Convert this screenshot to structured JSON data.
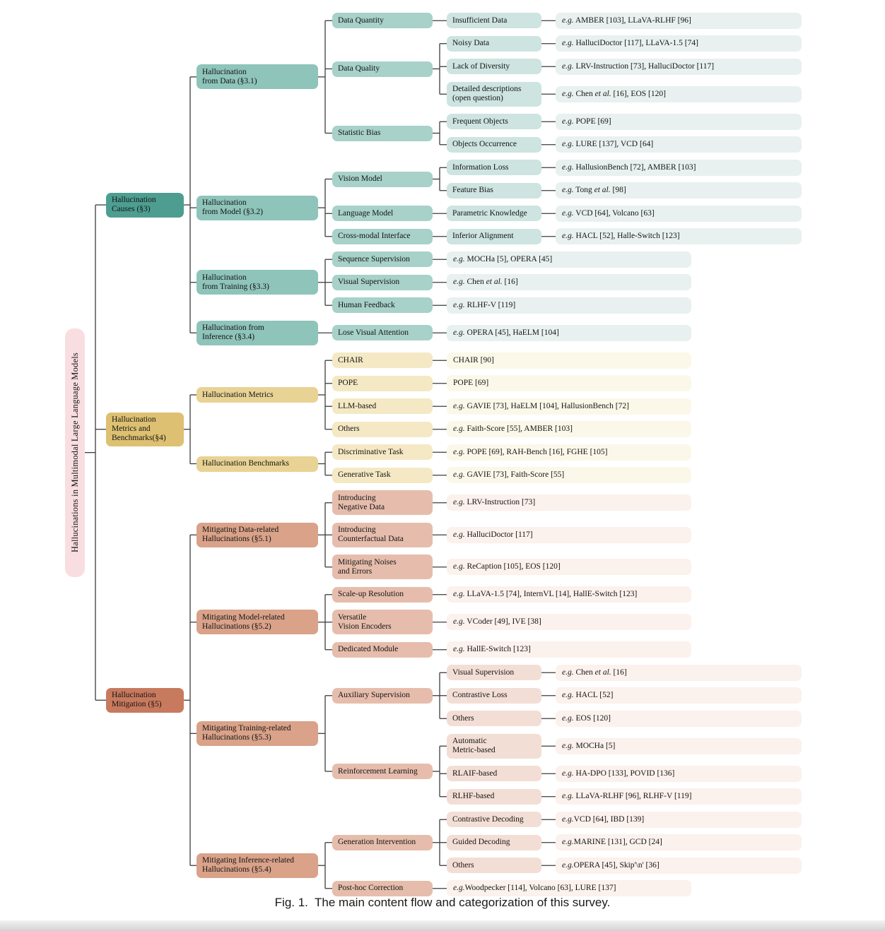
{
  "caption": "Fig. 1.  The main content flow and categorization of this survey.",
  "palette": {
    "root": "#f9dee1",
    "line": "#3d3d3d",
    "teal": {
      "l1": "#4d9e90",
      "l2": "#8ec4ba",
      "l3": "#a7d1c9",
      "l4": "#cde4e0",
      "leaf": "#e8f1ef"
    },
    "gold": {
      "l1": "#ddc071",
      "l2": "#e8d294",
      "l3": "#f4e9c4",
      "leaf": "#fbf8e9"
    },
    "red": {
      "l1": "#c87a5e",
      "l2": "#d9a289",
      "l3": "#e6bdac",
      "l4": "#f3ded5",
      "leaf": "#fbf1ed"
    }
  },
  "root": {
    "label": "Hallucinations in Multimodal Large Language Models",
    "style": "root",
    "children": [
      {
        "label": "Hallucination\nCauses (§3)",
        "style": "teal.l1",
        "children": [
          {
            "label": "Hallucination\nfrom Data (§3.1)",
            "style": "teal.l2",
            "children": [
              {
                "label": "Data Quantity",
                "style": "teal.l3",
                "children": [
                  {
                    "label": "Insufficient Data",
                    "style": "teal.l4",
                    "children": [
                      {
                        "label": "*e.g.* AMBER [103], LLaVA-RLHF [96]",
                        "style": "teal.leaf"
                      }
                    ]
                  }
                ]
              },
              {
                "label": "Data Quality",
                "style": "teal.l3",
                "children": [
                  {
                    "label": "Noisy Data",
                    "style": "teal.l4",
                    "children": [
                      {
                        "label": "*e.g.* HalluciDoctor [117], LLaVA-1.5 [74]",
                        "style": "teal.leaf"
                      }
                    ]
                  },
                  {
                    "label": "Lack of Diversity",
                    "style": "teal.l4",
                    "children": [
                      {
                        "label": "*e.g.* LRV-Instruction [73], HalluciDoctor [117]",
                        "style": "teal.leaf"
                      }
                    ]
                  },
                  {
                    "label": "Detailed descriptions\n(open question)",
                    "style": "teal.l4",
                    "children": [
                      {
                        "label": "*e.g.* Chen *et al.* [16], EOS [120]",
                        "style": "teal.leaf"
                      }
                    ]
                  }
                ]
              },
              {
                "label": "Statistic Bias",
                "style": "teal.l3",
                "children": [
                  {
                    "label": "Frequent Objects",
                    "style": "teal.l4",
                    "children": [
                      {
                        "label": "*e.g.* POPE [69]",
                        "style": "teal.leaf"
                      }
                    ]
                  },
                  {
                    "label": "Objects Occurrence",
                    "style": "teal.l4",
                    "children": [
                      {
                        "label": "*e.g.* LURE [137], VCD [64]",
                        "style": "teal.leaf"
                      }
                    ]
                  }
                ]
              }
            ]
          },
          {
            "label": "Hallucination\nfrom Model (§3.2)",
            "style": "teal.l2",
            "children": [
              {
                "label": "Vision Model",
                "style": "teal.l3",
                "children": [
                  {
                    "label": "Information Loss",
                    "style": "teal.l4",
                    "children": [
                      {
                        "label": "*e.g.* HallusionBench [72], AMBER [103]",
                        "style": "teal.leaf"
                      }
                    ]
                  },
                  {
                    "label": "Feature Bias",
                    "style": "teal.l4",
                    "children": [
                      {
                        "label": "*e.g.* Tong *et al.* [98]",
                        "style": "teal.leaf"
                      }
                    ]
                  }
                ]
              },
              {
                "label": "Language Model",
                "style": "teal.l3",
                "children": [
                  {
                    "label": "Parametric Knowledge",
                    "style": "teal.l4",
                    "children": [
                      {
                        "label": "*e.g.* VCD [64], Volcano [63]",
                        "style": "teal.leaf"
                      }
                    ]
                  }
                ]
              },
              {
                "label": "Cross-modal Interface",
                "style": "teal.l3",
                "children": [
                  {
                    "label": "Inferior Alignment",
                    "style": "teal.l4",
                    "children": [
                      {
                        "label": "*e.g.* HACL [52], Halle-Switch [123]",
                        "style": "teal.leaf"
                      }
                    ]
                  }
                ]
              }
            ]
          },
          {
            "label": "Hallucination\nfrom Training (§3.3)",
            "style": "teal.l2",
            "children": [
              {
                "label": "Sequence Supervision",
                "style": "teal.l3",
                "children": [
                  {
                    "label": "*e.g.* MOCHa [5], OPERA [45]",
                    "style": "teal.leaf"
                  }
                ]
              },
              {
                "label": "Visual Supervision",
                "style": "teal.l3",
                "children": [
                  {
                    "label": "*e.g.* Chen *et al.* [16]",
                    "style": "teal.leaf"
                  }
                ]
              },
              {
                "label": "Human Feedback",
                "style": "teal.l3",
                "children": [
                  {
                    "label": "*e.g.* RLHF-V [119]",
                    "style": "teal.leaf"
                  }
                ]
              }
            ]
          },
          {
            "label": "Hallucination from\nInference (§3.4)",
            "style": "teal.l2",
            "children": [
              {
                "label": "Lose Visual Attention",
                "style": "teal.l3",
                "children": [
                  {
                    "label": "*e.g.* OPERA [45], HaELM [104]",
                    "style": "teal.leaf"
                  }
                ]
              }
            ]
          }
        ]
      },
      {
        "label": "Hallucination\nMetrics and\nBenchmarks(§4)",
        "style": "gold.l1",
        "children": [
          {
            "label": "Hallucination Metrics",
            "style": "gold.l2",
            "children": [
              {
                "label": "CHAIR",
                "style": "gold.l3",
                "children": [
                  {
                    "label": "CHAIR [90]",
                    "style": "gold.leaf"
                  }
                ]
              },
              {
                "label": "POPE",
                "style": "gold.l3",
                "children": [
                  {
                    "label": "POPE [69]",
                    "style": "gold.leaf"
                  }
                ]
              },
              {
                "label": "LLM-based",
                "style": "gold.l3",
                "children": [
                  {
                    "label": "*e.g.* GAVIE [73], HaELM [104], HallusionBench [72]",
                    "style": "gold.leaf"
                  }
                ]
              },
              {
                "label": "Others",
                "style": "gold.l3",
                "children": [
                  {
                    "label": "*e.g.* Faith-Score [55], AMBER [103]",
                    "style": "gold.leaf"
                  }
                ]
              }
            ]
          },
          {
            "label": "Hallucination Benchmarks",
            "style": "gold.l2",
            "children": [
              {
                "label": "Discriminative Task",
                "style": "gold.l3",
                "children": [
                  {
                    "label": "*e.g.* POPE [69], RAH-Bench [16], FGHE [105]",
                    "style": "gold.leaf"
                  }
                ]
              },
              {
                "label": "Generative Task",
                "style": "gold.l3",
                "children": [
                  {
                    "label": "*e.g.* GAVIE [73], Faith-Score [55]",
                    "style": "gold.leaf"
                  }
                ]
              }
            ]
          }
        ]
      },
      {
        "label": "Hallucination\nMitigation (§5)",
        "style": "red.l1",
        "children": [
          {
            "label": "Mitigating Data-related\nHallucinations (§5.1)",
            "style": "red.l2",
            "children": [
              {
                "label": "Introducing\nNegative Data",
                "style": "red.l3",
                "children": [
                  {
                    "label": "*e.g.* LRV-Instruction [73]",
                    "style": "red.leaf"
                  }
                ]
              },
              {
                "label": "Introducing\nCounterfactual Data",
                "style": "red.l3",
                "children": [
                  {
                    "label": "*e.g.* HalluciDoctor [117]",
                    "style": "red.leaf"
                  }
                ]
              },
              {
                "label": "Mitigating Noises\nand Errors",
                "style": "red.l3",
                "children": [
                  {
                    "label": "*e.g.* ReCaption [105], EOS [120]",
                    "style": "red.leaf"
                  }
                ]
              }
            ]
          },
          {
            "label": "Mitigating Model-related\nHallucinations (§5.2)",
            "style": "red.l2",
            "children": [
              {
                "label": "Scale-up Resolution",
                "style": "red.l3",
                "children": [
                  {
                    "label": "*e.g.* LLaVA-1.5 [74], InternVL [14], HallE-Switch [123]",
                    "style": "red.leaf"
                  }
                ]
              },
              {
                "label": "Versatile\nVision Encoders",
                "style": "red.l3",
                "children": [
                  {
                    "label": "*e.g.* VCoder [49], IVE [38]",
                    "style": "red.leaf"
                  }
                ]
              },
              {
                "label": "Dedicated Module",
                "style": "red.l3",
                "children": [
                  {
                    "label": "*e.g.* HallE-Switch [123]",
                    "style": "red.leaf"
                  }
                ]
              }
            ]
          },
          {
            "label": "Mitigating Training-related\nHallucinations (§5.3)",
            "style": "red.l2",
            "children": [
              {
                "label": "Auxiliary Supervision",
                "style": "red.l3",
                "children": [
                  {
                    "label": "Visual Supervision",
                    "style": "red.l4",
                    "children": [
                      {
                        "label": "*e.g.* Chen *et al.* [16]",
                        "style": "red.leaf"
                      }
                    ]
                  },
                  {
                    "label": "Contrastive Loss",
                    "style": "red.l4",
                    "children": [
                      {
                        "label": "*e.g.* HACL [52]",
                        "style": "red.leaf"
                      }
                    ]
                  },
                  {
                    "label": "Others",
                    "style": "red.l4",
                    "children": [
                      {
                        "label": "*e.g.* EOS [120]",
                        "style": "red.leaf"
                      }
                    ]
                  }
                ]
              },
              {
                "label": "Reinforcement Learning",
                "style": "red.l3",
                "children": [
                  {
                    "label": "Automatic\nMetric-based",
                    "style": "red.l4",
                    "children": [
                      {
                        "label": "*e.g.* MOCHa [5]",
                        "style": "red.leaf"
                      }
                    ]
                  },
                  {
                    "label": "RLAIF-based",
                    "style": "red.l4",
                    "children": [
                      {
                        "label": "*e.g.* HA-DPO [133], POVID [136]",
                        "style": "red.leaf"
                      }
                    ]
                  },
                  {
                    "label": "RLHF-based",
                    "style": "red.l4",
                    "children": [
                      {
                        "label": "*e.g.* LLaVA-RLHF [96], RLHF-V [119]",
                        "style": "red.leaf"
                      }
                    ]
                  }
                ]
              }
            ]
          },
          {
            "label": "Mitigating Inference-related\nHallucinations (§5.4)",
            "style": "red.l2",
            "children": [
              {
                "label": "Generation Intervention",
                "style": "red.l3",
                "children": [
                  {
                    "label": "Contrastive Decoding",
                    "style": "red.l4",
                    "children": [
                      {
                        "label": "*e.g.*VCD [64], IBD [139]",
                        "style": "red.leaf"
                      }
                    ]
                  },
                  {
                    "label": "Guided Decoding",
                    "style": "red.l4",
                    "children": [
                      {
                        "label": "*e.g.*MARINE [131], GCD [24]",
                        "style": "red.leaf"
                      }
                    ]
                  },
                  {
                    "label": "Others",
                    "style": "red.l4",
                    "children": [
                      {
                        "label": "*e.g.*OPERA [45], Skip'\\n' [36]",
                        "style": "red.leaf"
                      }
                    ]
                  }
                ]
              },
              {
                "label": "Post-hoc Correction",
                "style": "red.l3",
                "children": [
                  {
                    "label": "*e.g.*Woodpecker [114], Volcano [63], LURE [137]",
                    "style": "red.leaf"
                  }
                ]
              }
            ]
          }
        ]
      }
    ]
  }
}
